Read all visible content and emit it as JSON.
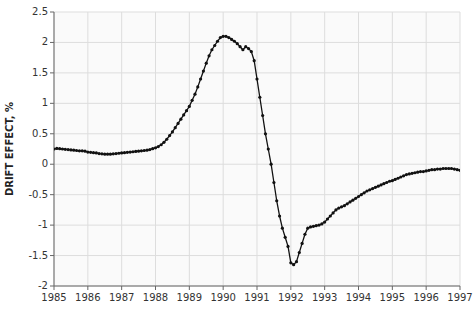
{
  "chart_data": {
    "type": "line",
    "ylabel": "DRIFT EFFECT, %",
    "xlim": [
      1985,
      1997
    ],
    "ylim": [
      -2,
      2.5
    ],
    "xticks": [
      1985,
      1986,
      1987,
      1988,
      1989,
      1990,
      1991,
      1992,
      1993,
      1994,
      1995,
      1996,
      1997
    ],
    "yticks": [
      -2,
      -1.5,
      -1,
      -0.5,
      0,
      0.5,
      1,
      1.5,
      2,
      2.5
    ],
    "grid": true,
    "color": "#111111",
    "marker": "point",
    "x": [
      1985.0,
      1985.083,
      1985.167,
      1985.25,
      1985.333,
      1985.417,
      1985.5,
      1985.583,
      1985.667,
      1985.75,
      1985.833,
      1985.917,
      1986.0,
      1986.083,
      1986.167,
      1986.25,
      1986.333,
      1986.417,
      1986.5,
      1986.583,
      1986.667,
      1986.75,
      1986.833,
      1986.917,
      1987.0,
      1987.083,
      1987.167,
      1987.25,
      1987.333,
      1987.417,
      1987.5,
      1987.583,
      1987.667,
      1987.75,
      1987.833,
      1987.917,
      1988.0,
      1988.083,
      1988.167,
      1988.25,
      1988.333,
      1988.417,
      1988.5,
      1988.583,
      1988.667,
      1988.75,
      1988.833,
      1988.917,
      1989.0,
      1989.083,
      1989.167,
      1989.25,
      1989.333,
      1989.417,
      1989.5,
      1989.583,
      1989.667,
      1989.75,
      1989.833,
      1989.917,
      1990.0,
      1990.083,
      1990.167,
      1990.25,
      1990.333,
      1990.417,
      1990.5,
      1990.583,
      1990.667,
      1990.75,
      1990.833,
      1990.917,
      1991.0,
      1991.083,
      1991.167,
      1991.25,
      1991.333,
      1991.417,
      1991.5,
      1991.583,
      1991.667,
      1991.75,
      1991.833,
      1991.917,
      1992.0,
      1992.083,
      1992.167,
      1992.25,
      1992.333,
      1992.417,
      1992.5,
      1992.583,
      1992.667,
      1992.75,
      1992.833,
      1992.917,
      1993.0,
      1993.083,
      1993.167,
      1993.25,
      1993.333,
      1993.417,
      1993.5,
      1993.583,
      1993.667,
      1993.75,
      1993.833,
      1993.917,
      1994.0,
      1994.083,
      1994.167,
      1994.25,
      1994.333,
      1994.417,
      1994.5,
      1994.583,
      1994.667,
      1994.75,
      1994.833,
      1994.917,
      1995.0,
      1995.083,
      1995.167,
      1995.25,
      1995.333,
      1995.417,
      1995.5,
      1995.583,
      1995.667,
      1995.75,
      1995.833,
      1995.917,
      1996.0,
      1996.083,
      1996.167,
      1996.25,
      1996.333,
      1996.417,
      1996.5,
      1996.583,
      1996.667,
      1996.75,
      1996.833,
      1996.917,
      1997.0
    ],
    "values": [
      0.25,
      0.26,
      0.255,
      0.25,
      0.245,
      0.24,
      0.235,
      0.23,
      0.225,
      0.22,
      0.22,
      0.215,
      0.2,
      0.195,
      0.19,
      0.185,
      0.175,
      0.17,
      0.165,
      0.165,
      0.165,
      0.17,
      0.175,
      0.18,
      0.185,
      0.19,
      0.195,
      0.2,
      0.205,
      0.21,
      0.215,
      0.22,
      0.225,
      0.23,
      0.24,
      0.255,
      0.27,
      0.29,
      0.32,
      0.36,
      0.41,
      0.47,
      0.53,
      0.6,
      0.67,
      0.74,
      0.81,
      0.88,
      0.95,
      1.05,
      1.15,
      1.27,
      1.4,
      1.53,
      1.66,
      1.78,
      1.88,
      1.95,
      2.02,
      2.08,
      2.1,
      2.1,
      2.08,
      2.05,
      2.02,
      1.98,
      1.93,
      1.88,
      1.93,
      1.9,
      1.85,
      1.7,
      1.4,
      1.1,
      0.8,
      0.5,
      0.25,
      0.0,
      -0.3,
      -0.6,
      -0.85,
      -1.05,
      -1.2,
      -1.35,
      -1.62,
      -1.65,
      -1.6,
      -1.45,
      -1.3,
      -1.15,
      -1.05,
      -1.03,
      -1.02,
      -1.01,
      -1.0,
      -0.98,
      -0.95,
      -0.9,
      -0.85,
      -0.8,
      -0.75,
      -0.72,
      -0.7,
      -0.68,
      -0.65,
      -0.62,
      -0.59,
      -0.56,
      -0.53,
      -0.5,
      -0.47,
      -0.44,
      -0.42,
      -0.4,
      -0.38,
      -0.36,
      -0.34,
      -0.32,
      -0.3,
      -0.28,
      -0.27,
      -0.25,
      -0.23,
      -0.21,
      -0.19,
      -0.17,
      -0.16,
      -0.15,
      -0.14,
      -0.13,
      -0.12,
      -0.12,
      -0.11,
      -0.1,
      -0.09,
      -0.09,
      -0.08,
      -0.08,
      -0.07,
      -0.07,
      -0.07,
      -0.07,
      -0.08,
      -0.09,
      -0.1
    ]
  }
}
